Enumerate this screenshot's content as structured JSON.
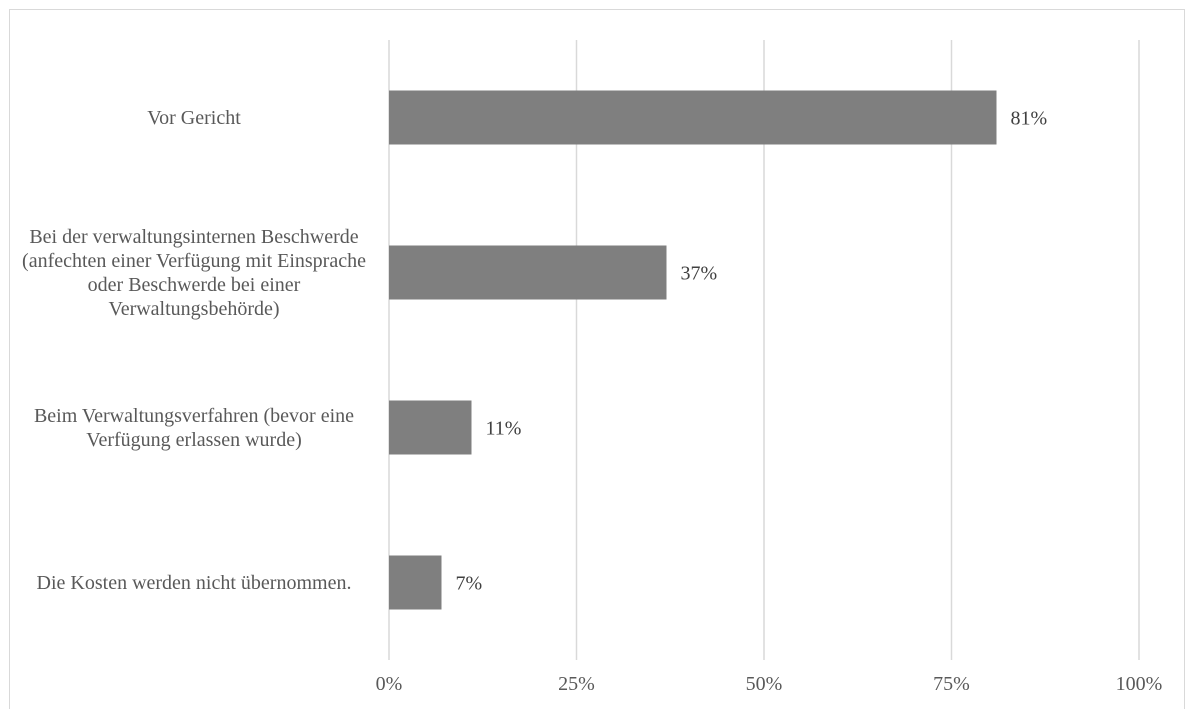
{
  "chart_data": {
    "type": "bar",
    "orientation": "horizontal",
    "title": "",
    "xlabel": "",
    "ylabel": "",
    "categories": [
      "Vor Gericht",
      "Bei der verwaltungsinternen Beschwerde (anfechten einer Verfügung mit Einsprache oder Beschwerde bei einer Verwaltungsbehörde)",
      "Beim Verwaltungsverfahren (bevor eine Verfügung erlassen wurde)",
      "Die Kosten werden nicht übernommen."
    ],
    "values": [
      81,
      37,
      11,
      7
    ],
    "value_labels": [
      "81%",
      "37%",
      "11%",
      "7%"
    ],
    "xlim": [
      0,
      100
    ],
    "x_ticks": [
      0,
      25,
      50,
      75,
      100
    ],
    "x_tick_labels": [
      "0%",
      "25%",
      "50%",
      "75%",
      "100%"
    ],
    "grid": true,
    "legend": "none",
    "bar_color": "#7f7f7f",
    "grid_color": "#d9d9d9"
  }
}
